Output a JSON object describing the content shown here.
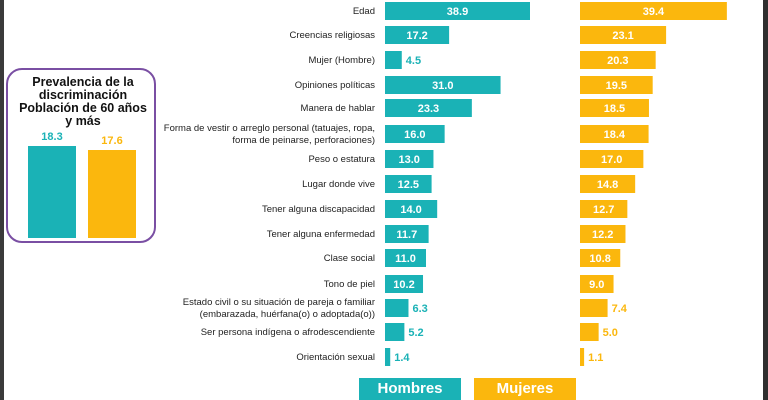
{
  "colors": {
    "hombres": "#1ab2b6",
    "mujeres": "#fbb70d",
    "box_border": "#7a4fa3"
  },
  "prevalence": {
    "title": "Prevalencia de la discriminación Población de 60 años y más",
    "hombres": 18.3,
    "mujeres": 17.6,
    "hombres_label": "18.3",
    "mujeres_label": "17.6"
  },
  "legend": {
    "hombres": "Hombres",
    "mujeres": "Mujeres"
  },
  "chart_data": {
    "type": "bar",
    "orientation": "horizontal",
    "categories": [
      [
        "Edad"
      ],
      [
        "Creencias religiosas"
      ],
      [
        "Mujer (Hombre)"
      ],
      [
        "Opiniones políticas"
      ],
      [
        "Manera de hablar"
      ],
      [
        "Forma de vestir o arreglo personal (tatuajes, ropa,",
        "forma de peinarse, perforaciones)"
      ],
      [
        "Peso o estatura"
      ],
      [
        "Lugar donde vive"
      ],
      [
        "Tener alguna discapacidad"
      ],
      [
        "Tener alguna enfermedad"
      ],
      [
        "Clase social"
      ],
      [
        "Tono de piel"
      ],
      [
        "Estado civil o su situación de pareja o familiar",
        "(embarazada, huérfana(o) o adoptada(o))"
      ],
      [
        "Ser persona indígena o afrodescendiente"
      ],
      [
        "Orientación sexual"
      ]
    ],
    "series": [
      {
        "name": "Hombres",
        "values": [
          38.9,
          17.2,
          4.5,
          31.0,
          23.3,
          16.0,
          13.0,
          12.5,
          14.0,
          11.7,
          11.0,
          10.2,
          6.3,
          5.2,
          1.4
        ],
        "labels": [
          "38.9",
          "17.2",
          "4.5",
          "31.0",
          "23.3",
          "16.0",
          "13.0",
          "12.5",
          "14.0",
          "11.7",
          "11.0",
          "10.2",
          "6.3",
          "5.2",
          "1.4"
        ]
      },
      {
        "name": "Mujeres",
        "values": [
          39.4,
          23.1,
          20.3,
          19.5,
          18.5,
          18.4,
          17.0,
          14.8,
          12.7,
          12.2,
          10.8,
          9.0,
          7.4,
          5.0,
          1.1
        ],
        "labels": [
          "39.4",
          "23.1",
          "20.3",
          "19.5",
          "18.5",
          "18.4",
          "17.0",
          "14.8",
          "12.7",
          "12.2",
          "10.8",
          "9.0",
          "7.4",
          "5.0",
          "1.1"
        ]
      }
    ]
  }
}
